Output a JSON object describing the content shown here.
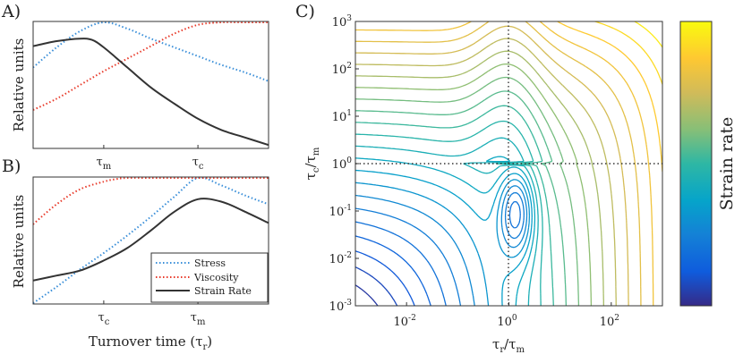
{
  "colors": {
    "stress": "#3a8fd9",
    "viscosity": "#e83a2a",
    "strain_rate": "#333333",
    "frame": "#333333"
  },
  "chart_data": [
    {
      "id": "A",
      "type": "line",
      "panel_label": "A)",
      "ylabel": "Relative units",
      "xlabel": "",
      "x_ticks": [
        {
          "main": "τ",
          "sub": "m",
          "x": 0.3
        },
        {
          "main": "τ",
          "sub": "c",
          "x": 0.7
        }
      ],
      "xlim": [
        0,
        1
      ],
      "ylim": [
        0,
        1
      ],
      "series": [
        {
          "name": "Stress",
          "style": "dotted",
          "x": [
            0,
            0.1,
            0.2,
            0.3,
            0.4,
            0.5,
            0.6,
            0.7,
            0.8,
            0.9,
            1.0
          ],
          "values": [
            0.64,
            0.8,
            0.93,
            1.0,
            0.95,
            0.87,
            0.8,
            0.73,
            0.66,
            0.6,
            0.53
          ]
        },
        {
          "name": "Viscosity",
          "style": "dotted",
          "x": [
            0,
            0.1,
            0.2,
            0.3,
            0.4,
            0.5,
            0.6,
            0.7,
            0.8,
            0.9,
            1.0
          ],
          "values": [
            0.3,
            0.39,
            0.5,
            0.61,
            0.71,
            0.81,
            0.91,
            0.98,
            1.0,
            1.0,
            1.0
          ]
        },
        {
          "name": "Strain Rate",
          "style": "solid",
          "x": [
            0,
            0.1,
            0.2,
            0.25,
            0.3,
            0.4,
            0.5,
            0.6,
            0.7,
            0.8,
            0.9,
            1.0
          ],
          "values": [
            0.81,
            0.85,
            0.87,
            0.86,
            0.8,
            0.64,
            0.48,
            0.35,
            0.23,
            0.14,
            0.08,
            0.02
          ]
        }
      ]
    },
    {
      "id": "B",
      "type": "line",
      "panel_label": "B)",
      "ylabel": "Relative units",
      "xlabel": "Turnover time (τ",
      "xlabel_sub": "r",
      "xlabel_close": ")",
      "x_ticks": [
        {
          "main": "τ",
          "sub": "c",
          "x": 0.3
        },
        {
          "main": "τ",
          "sub": "m",
          "x": 0.7
        }
      ],
      "xlim": [
        0,
        1
      ],
      "ylim": [
        0,
        1
      ],
      "legend": [
        "Stress",
        "Viscosity",
        "Strain Rate"
      ],
      "series": [
        {
          "name": "Stress",
          "style": "dotted",
          "x": [
            0,
            0.1,
            0.2,
            0.3,
            0.4,
            0.5,
            0.6,
            0.7,
            0.8,
            0.9,
            1.0
          ],
          "values": [
            0.0,
            0.13,
            0.27,
            0.4,
            0.54,
            0.69,
            0.85,
            1.0,
            0.94,
            0.86,
            0.79
          ]
        },
        {
          "name": "Viscosity",
          "style": "dotted",
          "x": [
            0,
            0.1,
            0.2,
            0.3,
            0.35,
            0.4,
            0.5,
            0.6,
            0.7,
            0.8,
            0.9,
            1.0
          ],
          "values": [
            0.63,
            0.79,
            0.91,
            0.97,
            0.99,
            1.0,
            1.0,
            1.0,
            1.0,
            1.0,
            1.0,
            1.0
          ]
        },
        {
          "name": "Strain Rate",
          "style": "solid",
          "x": [
            0,
            0.1,
            0.2,
            0.3,
            0.4,
            0.5,
            0.6,
            0.7,
            0.8,
            0.9,
            1.0
          ],
          "values": [
            0.18,
            0.22,
            0.26,
            0.34,
            0.44,
            0.58,
            0.73,
            0.83,
            0.81,
            0.73,
            0.64
          ]
        }
      ]
    },
    {
      "id": "C",
      "type": "contour",
      "panel_label": "C)",
      "xlabel": "τ",
      "xlabel_sub": "r",
      "xlabel_mid": "/τ",
      "xlabel_sub2": "m",
      "ylabel": "τ",
      "ylabel_sub": "c",
      "ylabel_mid": "/τ",
      "ylabel_sub2": "m",
      "x_scale": "log",
      "y_scale": "log",
      "xlim": [
        0.001,
        1000
      ],
      "ylim": [
        0.001,
        1000
      ],
      "x_ticks": [
        {
          "base": "10",
          "exp": "-2",
          "value": 0.01
        },
        {
          "base": "10",
          "exp": "0",
          "value": 1
        },
        {
          "base": "10",
          "exp": "2",
          "value": 100
        }
      ],
      "y_ticks": [
        {
          "base": "10",
          "exp": "-3",
          "value": 0.001
        },
        {
          "base": "10",
          "exp": "-2",
          "value": 0.01
        },
        {
          "base": "10",
          "exp": "-1",
          "value": 0.1
        },
        {
          "base": "10",
          "exp": "0",
          "value": 1
        },
        {
          "base": "10",
          "exp": "1",
          "value": 10
        },
        {
          "base": "10",
          "exp": "2",
          "value": 100
        },
        {
          "base": "10",
          "exp": "3",
          "value": 1000
        }
      ],
      "reference_lines": {
        "x": 1,
        "y": 1
      },
      "colorbar_label": "Strain rate",
      "colormap": "parula",
      "colormap_stops": [
        "#352a87",
        "#0f5cdd",
        "#1481d6",
        "#06a4ca",
        "#2eb7a4",
        "#87bf77",
        "#d1bb59",
        "#fec832",
        "#f9fb0e"
      ],
      "level_count": 24
    }
  ]
}
